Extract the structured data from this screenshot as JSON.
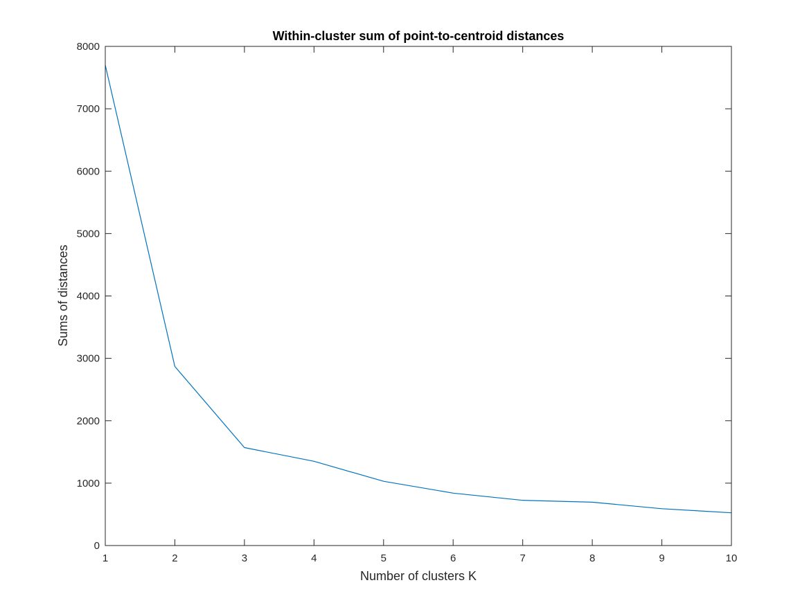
{
  "chart_data": {
    "type": "line",
    "title": "Within-cluster sum of point-to-centroid distances",
    "xlabel": "Number of clusters K",
    "ylabel": "Sums of distances",
    "x": [
      1,
      2,
      3,
      4,
      5,
      6,
      7,
      8,
      9,
      10
    ],
    "series": [
      {
        "values": [
          7700,
          2870,
          1570,
          1350,
          1030,
          840,
          725,
          695,
          590,
          525
        ],
        "color": "#0072BD"
      }
    ],
    "xlim": [
      1,
      10
    ],
    "ylim": [
      0,
      8000
    ],
    "xticks": [
      "1",
      "2",
      "3",
      "4",
      "5",
      "6",
      "7",
      "8",
      "9",
      "10"
    ],
    "yticks": [
      "0",
      "1000",
      "2000",
      "3000",
      "4000",
      "5000",
      "6000",
      "7000",
      "8000"
    ],
    "grid": false,
    "legend": "none",
    "colors": {
      "line": "#0072BD",
      "axes": "#262626",
      "background": "#ffffff"
    }
  }
}
